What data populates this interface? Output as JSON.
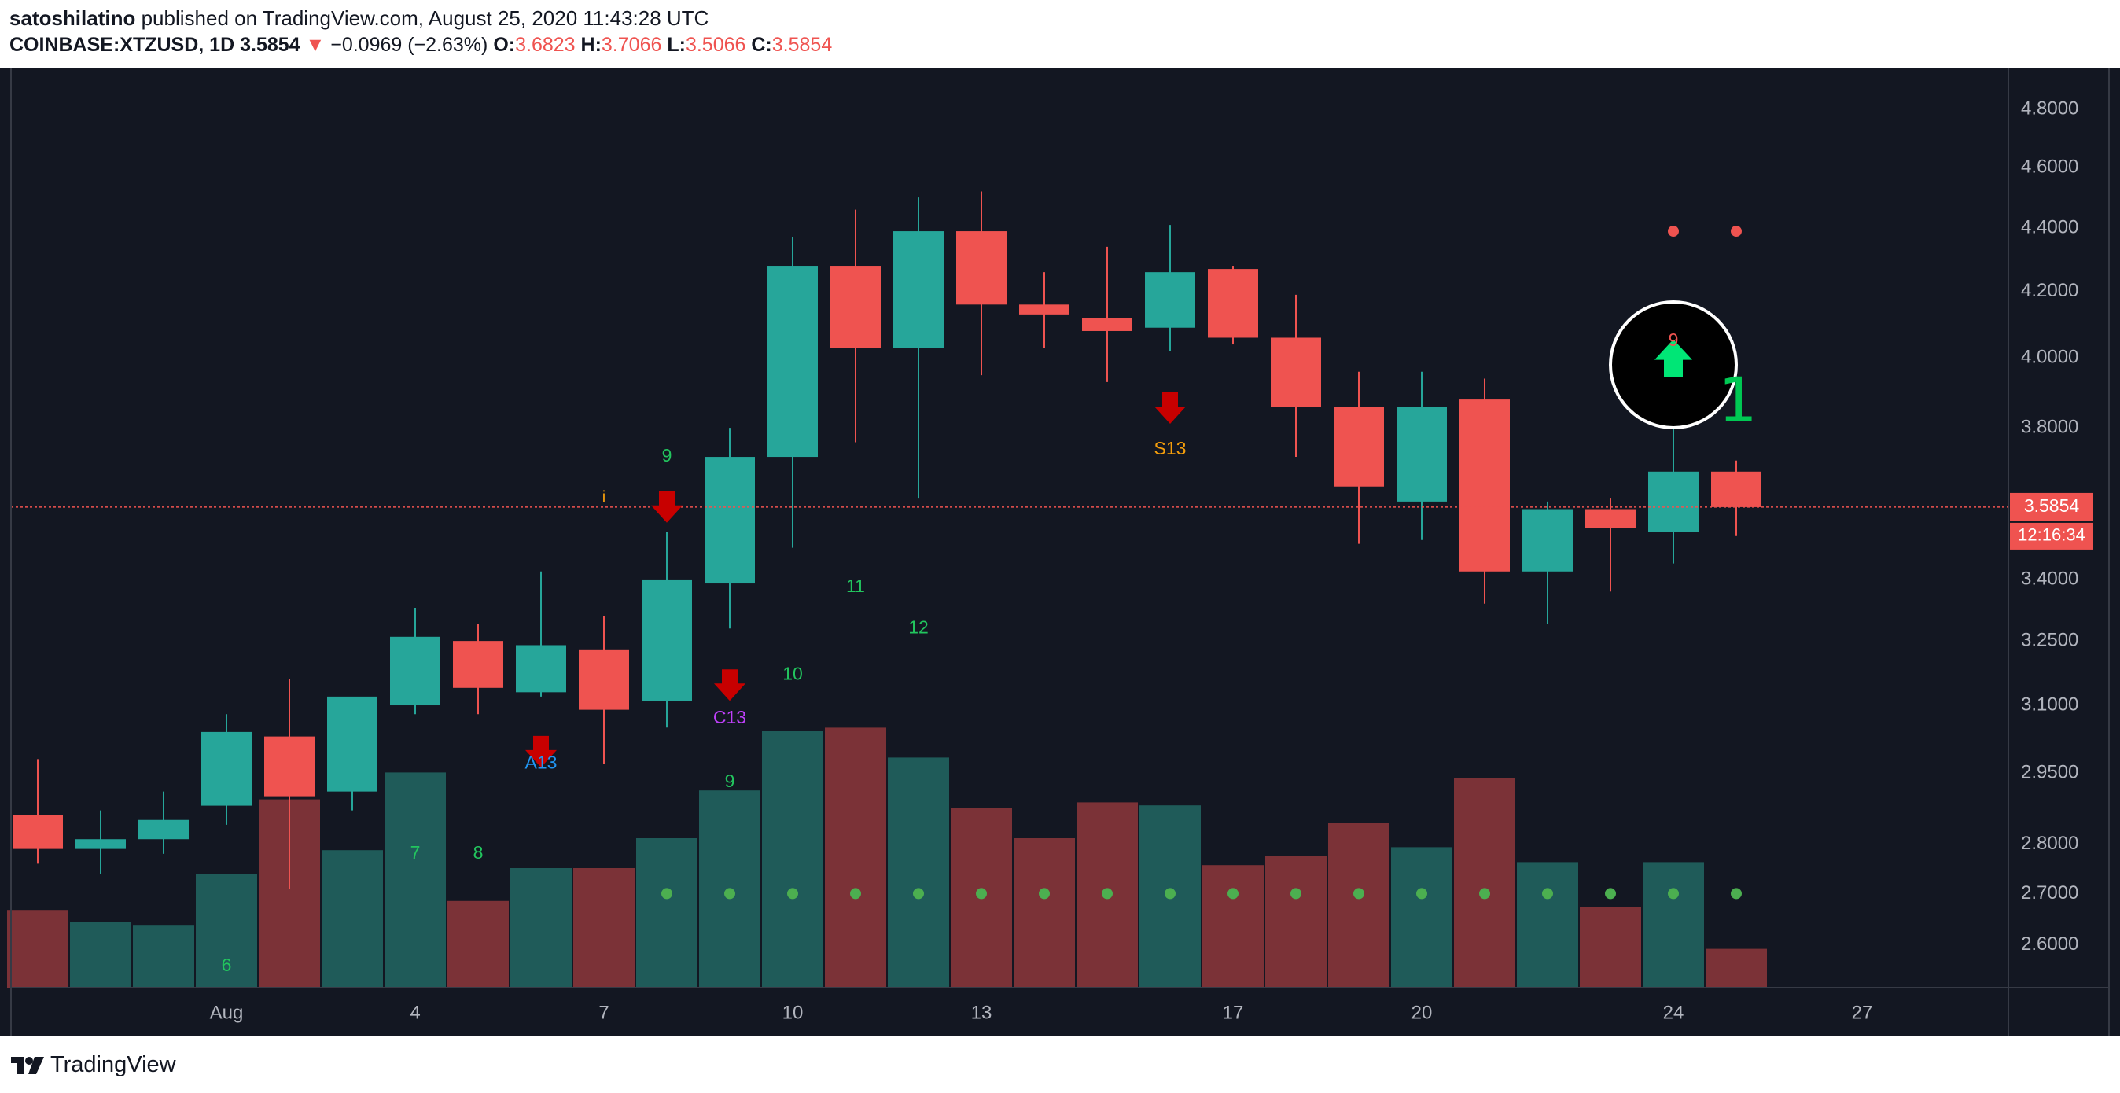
{
  "header": {
    "author": "satoshilatino",
    "published_text": "published on TradingView.com, August 25, 2020 11:43:28 UTC",
    "symbol": "COINBASE:XTZUSD, 1D",
    "last": "3.5854",
    "change": "−0.0969 (−2.63%)",
    "o_label": "O:",
    "o_value": "3.6823",
    "h_label": "H:",
    "h_value": "3.7066",
    "l_label": "L:",
    "l_value": "3.5066",
    "c_label": "C:",
    "c_value": "3.5854",
    "change_arrow_icon": "down-triangle-icon",
    "change_color": "#ef5350"
  },
  "footer": {
    "brand": "TradingView",
    "logo_icon": "tradingview-logo-icon"
  },
  "colors": {
    "up": "#26a69a",
    "down": "#ef5350",
    "vol_up": "#1f5b59",
    "vol_down": "#7b3237",
    "background": "#131722",
    "axis_text": "#b2b5be",
    "green_label": "#22c55e",
    "orange_label": "#f59e0b",
    "blue_label": "#2196f3",
    "purple_label": "#c040fb"
  },
  "chart_data": {
    "type": "candlestick",
    "y_scale": "log",
    "ylim": [
      2.52,
      4.95
    ],
    "x_dates": [
      "2020-07-29",
      "2020-07-30",
      "2020-07-31",
      "2020-08-01",
      "2020-08-02",
      "2020-08-03",
      "2020-08-04",
      "2020-08-05",
      "2020-08-06",
      "2020-08-07",
      "2020-08-08",
      "2020-08-09",
      "2020-08-10",
      "2020-08-11",
      "2020-08-12",
      "2020-08-13",
      "2020-08-14",
      "2020-08-15",
      "2020-08-16",
      "2020-08-17",
      "2020-08-18",
      "2020-08-19",
      "2020-08-20",
      "2020-08-21",
      "2020-08-22",
      "2020-08-23",
      "2020-08-24",
      "2020-08-25"
    ],
    "x_range": [
      "2020-07-29",
      "2020-08-30"
    ],
    "open": [
      2.86,
      2.79,
      2.81,
      2.88,
      3.03,
      2.91,
      3.1,
      3.25,
      3.13,
      3.23,
      3.11,
      3.39,
      3.72,
      4.28,
      4.03,
      4.39,
      4.16,
      4.12,
      4.09,
      4.27,
      4.06,
      3.86,
      3.6,
      3.88,
      3.42,
      3.58,
      3.52,
      3.68
    ],
    "high": [
      2.98,
      2.87,
      2.91,
      3.08,
      3.16,
      3.11,
      3.33,
      3.29,
      3.42,
      3.31,
      3.52,
      3.8,
      4.37,
      4.46,
      4.5,
      4.52,
      4.26,
      4.34,
      4.41,
      4.28,
      4.19,
      3.96,
      3.96,
      3.94,
      3.6,
      3.61,
      3.8,
      3.71
    ],
    "low": [
      2.76,
      2.74,
      2.78,
      2.84,
      2.71,
      2.87,
      3.08,
      3.08,
      3.12,
      2.97,
      3.05,
      3.28,
      3.48,
      3.76,
      3.61,
      3.95,
      4.03,
      3.93,
      4.02,
      4.04,
      3.72,
      3.49,
      3.5,
      3.34,
      3.29,
      3.37,
      3.44,
      3.51
    ],
    "close": [
      2.79,
      2.81,
      2.85,
      3.04,
      2.9,
      3.12,
      3.26,
      3.14,
      3.24,
      3.09,
      3.4,
      3.72,
      4.28,
      4.03,
      4.39,
      4.16,
      4.13,
      4.08,
      4.26,
      4.06,
      3.86,
      3.64,
      3.86,
      3.42,
      3.58,
      3.53,
      3.68,
      3.5854
    ],
    "volume_rel": [
      0.26,
      0.22,
      0.21,
      0.38,
      0.63,
      0.46,
      0.72,
      0.29,
      0.4,
      0.4,
      0.5,
      0.66,
      0.86,
      0.87,
      0.77,
      0.6,
      0.5,
      0.62,
      0.61,
      0.41,
      0.44,
      0.55,
      0.47,
      0.7,
      0.42,
      0.27,
      0.42,
      0.13
    ],
    "y_ticks": [
      "4.8000",
      "4.6000",
      "4.4000",
      "4.2000",
      "4.0000",
      "3.8000",
      "3.4000",
      "3.2500",
      "3.1000",
      "2.9500",
      "2.8000",
      "2.7000",
      "2.6000"
    ],
    "x_ticks": [
      {
        "date": "2020-08-01",
        "label": "Aug"
      },
      {
        "date": "2020-08-04",
        "label": "4"
      },
      {
        "date": "2020-08-07",
        "label": "7"
      },
      {
        "date": "2020-08-10",
        "label": "10"
      },
      {
        "date": "2020-08-13",
        "label": "13"
      },
      {
        "date": "2020-08-17",
        "label": "17"
      },
      {
        "date": "2020-08-20",
        "label": "20"
      },
      {
        "date": "2020-08-24",
        "label": "24"
      },
      {
        "date": "2020-08-27",
        "label": "27"
      }
    ],
    "last_price": {
      "value": 3.5854,
      "label": "3.5854",
      "countdown": "12:16:34"
    },
    "td_labels": [
      {
        "date": "2020-08-01",
        "price": 2.56,
        "text": "6",
        "color": "green"
      },
      {
        "date": "2020-08-04",
        "price": 2.78,
        "text": "7",
        "color": "green"
      },
      {
        "date": "2020-08-05",
        "price": 2.78,
        "text": "8",
        "color": "green"
      },
      {
        "date": "2020-08-08",
        "price": 3.72,
        "text": "9",
        "color": "green"
      },
      {
        "date": "2020-08-09",
        "price": 2.93,
        "text": "9",
        "color": "green"
      },
      {
        "date": "2020-08-10",
        "price": 3.17,
        "text": "10",
        "color": "green"
      },
      {
        "date": "2020-08-11",
        "price": 3.38,
        "text": "11",
        "color": "green"
      },
      {
        "date": "2020-08-12",
        "price": 3.28,
        "text": "12",
        "color": "green"
      },
      {
        "date": "2020-08-06",
        "price": 2.97,
        "text": "A13",
        "color": "blue"
      },
      {
        "date": "2020-08-09",
        "price": 3.07,
        "text": "C13",
        "color": "purple"
      },
      {
        "date": "2020-08-16",
        "price": 3.74,
        "text": "S13",
        "color": "orange"
      },
      {
        "date": "2020-08-24",
        "price": 4.05,
        "text": "9",
        "color": "down"
      },
      {
        "date": "2020-08-07",
        "price": 3.61,
        "text": "i",
        "color": "orange"
      }
    ],
    "sell_arrows": [
      {
        "date": "2020-08-06",
        "price": 3.0
      },
      {
        "date": "2020-08-08",
        "price": 3.59
      },
      {
        "date": "2020-08-09",
        "price": 3.15
      },
      {
        "date": "2020-08-16",
        "price": 3.86
      }
    ],
    "buy_arrow": {
      "date": "2020-08-24",
      "price": 3.99
    },
    "highlight_circle": {
      "date": "2020-08-24",
      "price": 3.98
    },
    "red_dots": [
      {
        "date": "2020-08-24",
        "price": 4.39
      },
      {
        "date": "2020-08-25",
        "price": 4.39
      }
    ],
    "green_dot_dates": [
      "2020-08-08",
      "2020-08-09",
      "2020-08-10",
      "2020-08-11",
      "2020-08-12",
      "2020-08-13",
      "2020-08-14",
      "2020-08-15",
      "2020-08-16",
      "2020-08-17",
      "2020-08-18",
      "2020-08-19",
      "2020-08-20",
      "2020-08-21",
      "2020-08-22",
      "2020-08-23",
      "2020-08-24",
      "2020-08-25"
    ],
    "green_dot_price": 2.7,
    "handdrawn_one": {
      "date": "2020-08-25",
      "price": 3.88,
      "text": "1"
    }
  }
}
